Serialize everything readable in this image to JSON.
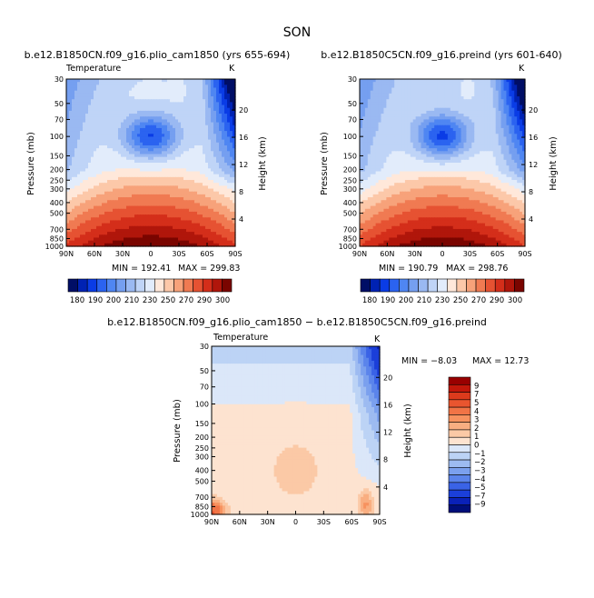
{
  "page_title": "SON",
  "chart_data": [
    {
      "id": "panel-1",
      "type": "contour",
      "title": "b.e12.B1850CN.f09_g16.plio_cam1850 (yrs 655-694)",
      "subtitle": "Temperature",
      "units": "K",
      "ylabel": "Pressure (mb)",
      "ylabel_right": "Height (km)",
      "pressure_ticks": [
        "30",
        "50",
        "70",
        "100",
        "150",
        "200",
        "250",
        "300",
        "400",
        "500",
        "700",
        "850",
        "1000"
      ],
      "height_ticks": [
        "20",
        "16",
        "12",
        "8",
        "4"
      ],
      "lat_ticks": [
        "90N",
        "60N",
        "30N",
        "0",
        "30S",
        "60S",
        "90S"
      ],
      "min_label": "MIN = 192.41",
      "max_label": "MAX = 299.83",
      "min": 192.41,
      "max": 299.83
    },
    {
      "id": "panel-2",
      "type": "contour",
      "title": "b.e12.B1850C5CN.f09_g16.preind (yrs 601-640)",
      "subtitle": "",
      "units": "K",
      "ylabel": "Pressure (mb)",
      "ylabel_right": "Height (km)",
      "pressure_ticks": [
        "30",
        "50",
        "70",
        "100",
        "150",
        "200",
        "250",
        "300",
        "400",
        "500",
        "700",
        "850",
        "1000"
      ],
      "height_ticks": [
        "20",
        "16",
        "12",
        "8",
        "4"
      ],
      "lat_ticks": [
        "90N",
        "60N",
        "30N",
        "0",
        "30S",
        "60S",
        "90S"
      ],
      "min_label": "MIN = 190.79",
      "max_label": "MAX = 298.76",
      "min": 190.79,
      "max": 298.76
    },
    {
      "id": "panel-diff",
      "type": "contour",
      "title": "b.e12.B1850CN.f09_g16.plio_cam1850 − b.e12.B1850C5CN.f09_g16.preind",
      "subtitle": "Temperature",
      "units": "K",
      "ylabel": "Pressure (mb)",
      "ylabel_right": "Height (km)",
      "pressure_ticks": [
        "30",
        "50",
        "70",
        "100",
        "150",
        "200",
        "250",
        "300",
        "400",
        "500",
        "700",
        "850",
        "1000"
      ],
      "height_ticks": [
        "20",
        "16",
        "12",
        "8",
        "4"
      ],
      "lat_ticks": [
        "90N",
        "60N",
        "30N",
        "0",
        "30S",
        "60S",
        "90S"
      ],
      "min_label": "MIN =  −8.03",
      "max_label": "MAX =  12.73",
      "min": -8.03,
      "max": 12.73
    }
  ],
  "colorbar_abs": {
    "labels": [
      "180",
      "190",
      "200",
      "210",
      "230",
      "250",
      "270",
      "290",
      "300"
    ],
    "colors": [
      "#000e66",
      "#0022b3",
      "#0a3ce6",
      "#2b63f0",
      "#4f86f2",
      "#759ff0",
      "#9ab9f2",
      "#bfd4f7",
      "#e2ecfb",
      "#ffe8da",
      "#fcc8a9",
      "#f7a27a",
      "#f07a52",
      "#e65232",
      "#d42e1a",
      "#b0160b",
      "#7a0500"
    ]
  },
  "colorbar_diff": {
    "labels": [
      "9",
      "7",
      "5",
      "4",
      "3",
      "2",
      "1",
      "0",
      "−1",
      "−2",
      "−3",
      "−4",
      "−5",
      "−7",
      "−9"
    ],
    "colors": [
      "#990000",
      "#c2170a",
      "#dc3a1c",
      "#e9552f",
      "#f17446",
      "#f7925f",
      "#f9ae81",
      "#fbc9a6",
      "#fde3d0",
      "#dbe7f9",
      "#bcd3f5",
      "#9dbbf1",
      "#7ba0ee",
      "#5b84eb",
      "#3a63e6",
      "#1b3fd9",
      "#0a21b8",
      "#000e7a"
    ]
  }
}
